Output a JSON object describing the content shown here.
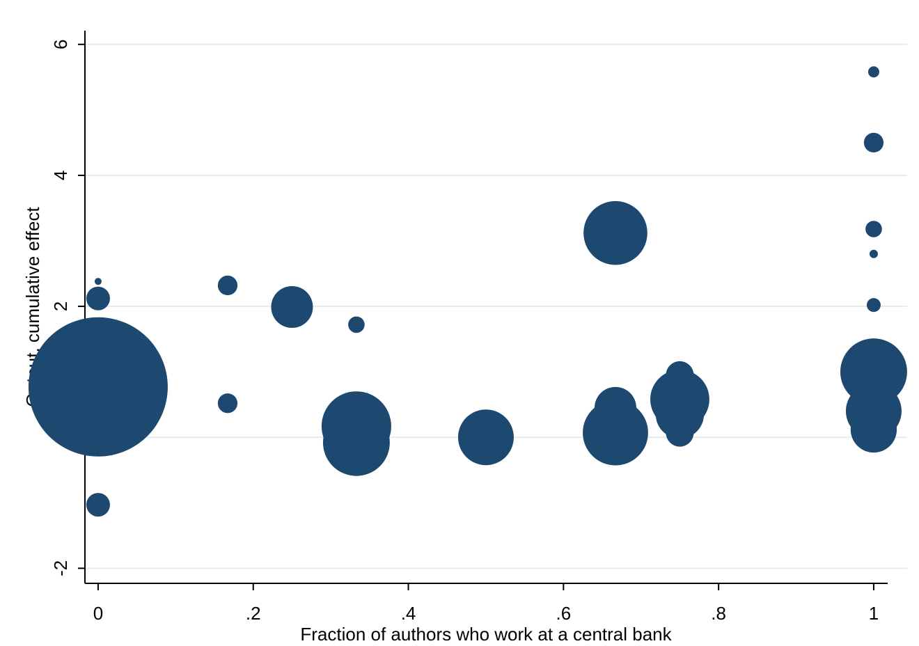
{
  "chart_data": {
    "type": "bubble",
    "x_label": "Fraction of authors who work at a central bank",
    "y_label": "Output, cumulative effect",
    "color": "#1d4870",
    "grid": true,
    "xlim": [
      -0.017,
      1.018
    ],
    "ylim": [
      -2.23,
      6.21
    ],
    "xticks": [
      0,
      {
        "value": 0.2,
        "label": ".2"
      },
      {
        "value": 0.4,
        "label": ".4"
      },
      {
        "value": 0.6,
        "label": ".6"
      },
      {
        "value": 0.8,
        "label": ".8"
      },
      1
    ],
    "yticks": [
      -2,
      0,
      2,
      4,
      6
    ],
    "x": [
      0,
      0,
      0,
      0,
      0,
      0.167,
      0.167,
      0.25,
      0.333,
      0.333,
      0.333,
      0.5,
      0.667,
      0.667,
      0.667,
      0.75,
      0.75,
      0.75,
      0.75,
      1,
      1,
      1,
      1,
      1,
      1,
      1,
      1
    ],
    "values": [
      2.38,
      2.12,
      0.77,
      -0.03,
      -1.03,
      2.32,
      0.52,
      1.99,
      1.72,
      0.17,
      -0.08,
      0.0,
      3.12,
      0.45,
      0.07,
      0.95,
      0.58,
      0.35,
      0.07,
      5.58,
      4.5,
      3.18,
      2.8,
      2.02,
      1.0,
      0.4,
      0.12
    ],
    "sizes": [
      0.25,
      2.9,
      100,
      4,
      2.9,
      2,
      2,
      9,
      1.4,
      25,
      23,
      16,
      21,
      9,
      22,
      4,
      18,
      12,
      4,
      0.64,
      2,
      1.4,
      0.36,
      1,
      23,
      16,
      11
    ]
  }
}
